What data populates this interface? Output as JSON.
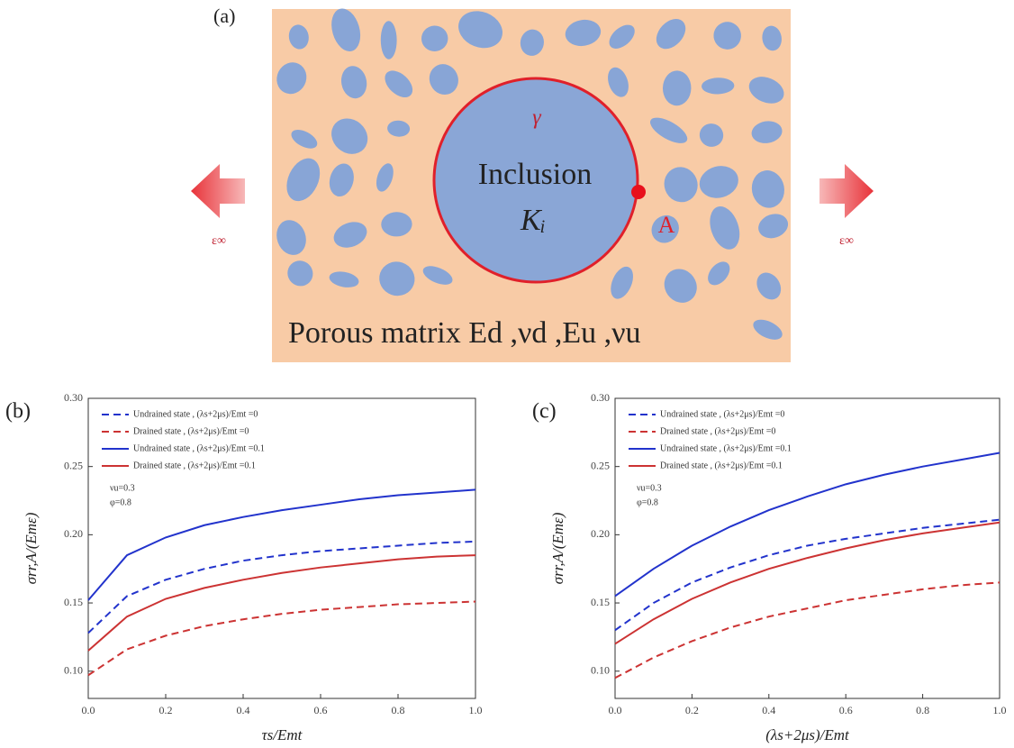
{
  "diagram": {
    "panel_label": "(a)",
    "boundary_label": "γ",
    "inclusion_label": "Inclusion",
    "inclusion_modulus": "Kᵢ",
    "point_label": "A",
    "strain_left": "ε∞",
    "strain_right": "ε∞",
    "matrix_label": "Porous matrix  Ed ,νd ,Eu ,νu"
  },
  "chart_data": [
    {
      "type": "line",
      "panel_label": "(b)",
      "x_label": "τs/Emt",
      "y_label": "σrr,A/(Emε)",
      "x": [
        0,
        0.1,
        0.2,
        0.3,
        0.4,
        0.5,
        0.6,
        0.7,
        0.8,
        0.9,
        1.0
      ],
      "xlim": [
        0,
        1
      ],
      "ylim": [
        0.08,
        0.3
      ],
      "xticks": [
        {
          "value": 0,
          "label": "0.0"
        },
        {
          "value": 0.2,
          "label": "0.2"
        },
        {
          "value": 0.4,
          "label": "0.4"
        },
        {
          "value": 0.6,
          "label": "0.6"
        },
        {
          "value": 0.8,
          "label": "0.8"
        },
        {
          "value": 1,
          "label": "1.0"
        }
      ],
      "yticks": [
        {
          "value": 0.1,
          "label": "0.10"
        },
        0.15,
        {
          "value": 0.2,
          "label": "0.20"
        },
        0.25,
        {
          "value": 0.3,
          "label": "0.30"
        }
      ],
      "annotations": [
        "νu=0.3",
        "φ=0.8"
      ],
      "series": [
        {
          "name": "Undrained state , (λs+2μs)/Emt =0",
          "color": "#2233cc",
          "dashed": true,
          "values": [
            0.128,
            0.155,
            0.167,
            0.175,
            0.181,
            0.185,
            0.188,
            0.19,
            0.192,
            0.194,
            0.195
          ]
        },
        {
          "name": "Drained state ,    (λs+2μs)/Emt =0",
          "color": "#cc3333",
          "dashed": true,
          "values": [
            0.097,
            0.116,
            0.126,
            0.133,
            0.138,
            0.142,
            0.145,
            0.147,
            0.149,
            0.15,
            0.151
          ]
        },
        {
          "name": "Undrained state , (λs+2μs)/Emt =0.1",
          "color": "#2233cc",
          "dashed": false,
          "values": [
            0.152,
            0.185,
            0.198,
            0.207,
            0.213,
            0.218,
            0.222,
            0.226,
            0.229,
            0.231,
            0.233
          ]
        },
        {
          "name": "Drained state ,    (λs+2μs)/Emt =0.1",
          "color": "#cc3333",
          "dashed": false,
          "values": [
            0.115,
            0.14,
            0.153,
            0.161,
            0.167,
            0.172,
            0.176,
            0.179,
            0.182,
            0.184,
            0.185
          ]
        }
      ]
    },
    {
      "type": "line",
      "panel_label": "(c)",
      "x_label": "(λs+2μs)/Emt",
      "y_label": "σrr,A/(Emε)",
      "x": [
        0,
        0.1,
        0.2,
        0.3,
        0.4,
        0.5,
        0.6,
        0.7,
        0.8,
        0.9,
        1.0
      ],
      "xlim": [
        0,
        1
      ],
      "ylim": [
        0.08,
        0.3
      ],
      "xticks": [
        {
          "value": 0,
          "label": "0.0"
        },
        {
          "value": 0.2,
          "label": "0.2"
        },
        {
          "value": 0.4,
          "label": "0.4"
        },
        {
          "value": 0.6,
          "label": "0.6"
        },
        {
          "value": 0.8,
          "label": "0.8"
        },
        {
          "value": 1,
          "label": "1.0"
        }
      ],
      "yticks": [
        {
          "value": 0.1,
          "label": "0.10"
        },
        0.15,
        {
          "value": 0.2,
          "label": "0.20"
        },
        0.25,
        {
          "value": 0.3,
          "label": "0.30"
        }
      ],
      "annotations": [
        "νu=0.3",
        "φ=0.8"
      ],
      "series": [
        {
          "name": "Undrained state , (λs+2μs)/Emt =0",
          "color": "#2233cc",
          "dashed": true,
          "values": [
            0.13,
            0.15,
            0.165,
            0.176,
            0.185,
            0.192,
            0.197,
            0.201,
            0.205,
            0.208,
            0.211
          ]
        },
        {
          "name": "Drained state ,    (λs+2μs)/Emt =0",
          "color": "#cc3333",
          "dashed": true,
          "values": [
            0.095,
            0.11,
            0.122,
            0.132,
            0.14,
            0.146,
            0.152,
            0.156,
            0.16,
            0.163,
            0.165
          ]
        },
        {
          "name": "Undrained state , (λs+2μs)/Emt =0.1",
          "color": "#2233cc",
          "dashed": false,
          "values": [
            0.155,
            0.175,
            0.192,
            0.206,
            0.218,
            0.228,
            0.237,
            0.244,
            0.25,
            0.255,
            0.26
          ]
        },
        {
          "name": "Drained state , (λs+2μs)/Emt =0.1",
          "color": "#cc3333",
          "dashed": false,
          "values": [
            0.12,
            0.138,
            0.153,
            0.165,
            0.175,
            0.183,
            0.19,
            0.196,
            0.201,
            0.205,
            0.209
          ]
        }
      ]
    }
  ]
}
